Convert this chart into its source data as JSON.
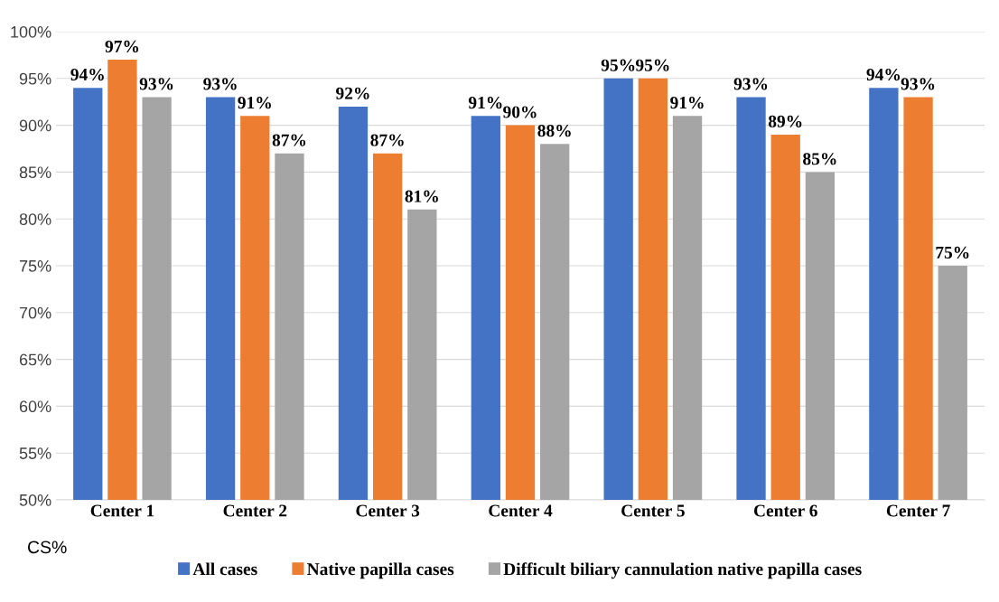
{
  "chart_data": {
    "type": "bar",
    "categories": [
      "Center 1",
      "Center 2",
      "Center 3",
      "Center 4",
      "Center 5",
      "Center 6",
      "Center 7"
    ],
    "series": [
      {
        "name": "All cases",
        "color": "#4472c4",
        "values": [
          94,
          93,
          92,
          91,
          95,
          93,
          94
        ],
        "value_labels": [
          "94%",
          "93%",
          "92%",
          "91%",
          "95%",
          "93%",
          "94%"
        ]
      },
      {
        "name": "Native papilla cases",
        "color": "#ed7d31",
        "values": [
          97,
          91,
          87,
          90,
          95,
          89,
          93
        ],
        "value_labels": [
          "97%",
          "91%",
          "87%",
          "90%",
          "95%",
          "89%",
          "93%"
        ]
      },
      {
        "name": "Difficult biliary cannulation native papilla cases",
        "color": "#a5a5a5",
        "values": [
          93,
          87,
          81,
          88,
          91,
          85,
          75
        ],
        "value_labels": [
          "93%",
          "87%",
          "81%",
          "88%",
          "91%",
          "85%",
          "75%"
        ]
      }
    ],
    "ylim": [
      50,
      100
    ],
    "yticks": [
      {
        "value": 50,
        "label": "50%"
      },
      {
        "value": 55,
        "label": "55%"
      },
      {
        "value": 60,
        "label": "60%"
      },
      {
        "value": 65,
        "label": "65%"
      },
      {
        "value": 70,
        "label": "70%"
      },
      {
        "value": 75,
        "label": "75%"
      },
      {
        "value": 80,
        "label": "80%"
      },
      {
        "value": 85,
        "label": "85%"
      },
      {
        "value": 90,
        "label": "90%"
      },
      {
        "value": 95,
        "label": "95%"
      },
      {
        "value": 100,
        "label": "100%"
      }
    ],
    "grid": "y",
    "legend": "bottom",
    "annotations": [
      "CS%"
    ]
  }
}
